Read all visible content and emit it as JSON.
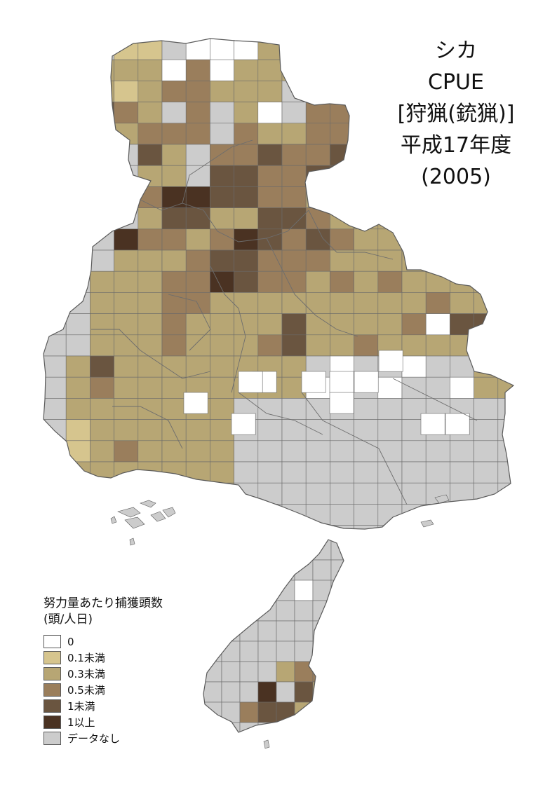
{
  "title": {
    "line1": "シカ",
    "line2": "CPUE",
    "line3": "[狩猟(銃猟)]",
    "line4": "平成17年度",
    "line5": "(2005)"
  },
  "legend": {
    "title_line1": "努力量あたり捕獲頭数",
    "title_line2": "(頭/人日)",
    "items": [
      {
        "label": "0",
        "color": "#ffffff"
      },
      {
        "label": "0.1未満",
        "color": "#d6c58e"
      },
      {
        "label": "0.3未満",
        "color": "#b7a674"
      },
      {
        "label": "0.5未満",
        "color": "#9a7e5c"
      },
      {
        "label": "1未満",
        "color": "#6a5540"
      },
      {
        "label": "1以上",
        "color": "#4a3222"
      },
      {
        "label": "データなし",
        "color": "#cccccc"
      }
    ]
  }
}
